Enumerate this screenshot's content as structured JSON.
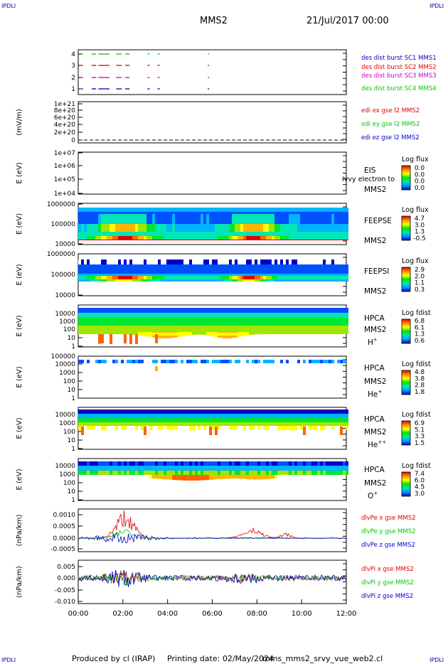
{
  "header": {
    "corner_left": "IPDLI",
    "corner_right": "IPDLI",
    "mission": "MMS2",
    "date": "21/Jul/2017 00:00"
  },
  "footer": {
    "produced_by": "Produced by cl (IRAP)",
    "printing_date": "Printing date: 02/May/2024",
    "script_name": "mms_mms2_srvy_vue_web2.cl",
    "corner_left": "IPDLI",
    "corner_right": "IPDLI"
  },
  "colors": {
    "red": "#e00000",
    "green": "#00c800",
    "blue": "#0000c8",
    "magenta": "#c800c8",
    "black": "#000000"
  },
  "chart_data": {
    "type": "stacked time-series panels",
    "x_ticks": [
      "00:00",
      "02:00",
      "04:00",
      "06:00",
      "08:00",
      "10:00",
      "12:00"
    ],
    "x_range_hours": [
      0,
      12
    ],
    "panels": [
      {
        "type": "line",
        "ylabel": "",
        "yticks": [
          "1",
          "2",
          "3",
          "4"
        ],
        "series": [
          {
            "name": "des dist burst SC1 MMS1",
            "color": "#0000c8",
            "level": 1
          },
          {
            "name": "des dist burst SC2 MMS2",
            "color": "#e00000",
            "level": 3
          },
          {
            "name": "des dist burst SC3 MMS3",
            "color": "#c800c8",
            "level": 2
          },
          {
            "name": "des dist burst SC4 MMS4",
            "color": "#00c800",
            "level": 4
          }
        ],
        "burst_intervals_hours": [
          [
            0.15,
            0.2
          ],
          [
            0.6,
            0.8
          ],
          [
            0.9,
            1.4
          ],
          [
            1.7,
            1.95
          ],
          [
            2.1,
            2.3
          ],
          [
            3.1,
            3.2
          ],
          [
            3.55,
            3.65
          ],
          [
            5.8,
            5.85
          ]
        ]
      },
      {
        "type": "line",
        "ylabel": "(mV/m)",
        "yticks": [
          "0",
          "2e+20",
          "4e+20",
          "6e+20",
          "8e+20",
          "1e+21"
        ],
        "series": [
          {
            "name": "edi ex gse l2 MMS2",
            "color": "#e00000"
          },
          {
            "name": "edi ey gse l2 MMS2",
            "color": "#00c800"
          },
          {
            "name": "edi ez gse l2 MMS2",
            "color": "#0000c8"
          }
        ],
        "values": "0 throughout (dashed baseline)"
      },
      {
        "type": "heatmap",
        "ylabel": "E (eV)",
        "yticks": [
          "1e+04",
          "1e+05",
          "1e+06",
          "1e+07"
        ],
        "side_labels": [
          "EIS",
          "MMS2"
        ],
        "overlay": "Ivvy electron to",
        "colorbar": {
          "title": "Log flux",
          "ticks": [
            "0.0",
            "0.0",
            "0.0",
            "0.0"
          ]
        },
        "values": "no data"
      },
      {
        "type": "heatmap",
        "ylabel": "E (eV)",
        "yticks": [
          "10000",
          "100000",
          "1000000"
        ],
        "side_labels": [
          "FEEPSE",
          "MMS2"
        ],
        "colorbar": {
          "title": "Log flux",
          "ticks": [
            "4.7",
            "3.0",
            "1.3",
            "-0.5"
          ]
        }
      },
      {
        "type": "heatmap",
        "ylabel": "E (eV)",
        "yticks": [
          "10000",
          "100000",
          "1000000"
        ],
        "side_labels": [
          "FEEPSI",
          "MMS2"
        ],
        "colorbar": {
          "title": "Log flux",
          "ticks": [
            "2.9",
            "2.0",
            "1.1",
            "0.3"
          ]
        }
      },
      {
        "type": "heatmap",
        "ylabel": "E (eV)",
        "yticks": [
          "1",
          "10",
          "100",
          "1000",
          "10000"
        ],
        "side_labels": [
          "HPCA",
          "MMS2"
        ],
        "species": {
          "base": "H",
          "sup": "+"
        },
        "colorbar": {
          "title": "Log fdist",
          "ticks": [
            "6.8",
            "6.1",
            "1.3",
            "0.6"
          ]
        }
      },
      {
        "type": "heatmap",
        "ylabel": "E (eV)",
        "yticks": [
          "1",
          "10",
          "100",
          "1000",
          "10000",
          "100000"
        ],
        "side_labels": [
          "HPCA",
          "MMS2"
        ],
        "species": {
          "base": "He",
          "sup": "+"
        },
        "colorbar": {
          "title": "Log fdist",
          "ticks": [
            "4.8",
            "3.8",
            "2.8",
            "1.8"
          ]
        }
      },
      {
        "type": "heatmap",
        "ylabel": "E (eV)",
        "yticks": [
          "1",
          "10",
          "100",
          "1000",
          "10000"
        ],
        "side_labels": [
          "HPCA",
          "MMS2"
        ],
        "species": {
          "base": "He",
          "sup": "++"
        },
        "colorbar": {
          "title": "Log fdist",
          "ticks": [
            "6.9",
            "5.1",
            "3.3",
            "1.5"
          ]
        }
      },
      {
        "type": "heatmap",
        "ylabel": "E (eV)",
        "yticks": [
          "1",
          "10",
          "100",
          "1000",
          "10000"
        ],
        "side_labels": [
          "HPCA",
          "MMS2"
        ],
        "species": {
          "base": "O",
          "sup": "+"
        },
        "colorbar": {
          "title": "Log fdist",
          "ticks": [
            "7.4",
            "6.0",
            "4.5",
            "3.0"
          ]
        }
      },
      {
        "type": "line",
        "ylabel": "(nPa/km)",
        "yticks": [
          "-0.0005",
          "0.0000",
          "0.0005",
          "0.0010"
        ],
        "series": [
          {
            "name": "dlvPe x gse MMS2",
            "color": "#e00000"
          },
          {
            "name": "dlvPe y gse MMS2",
            "color": "#00c800"
          },
          {
            "name": "dlvPe z gse MMS2",
            "color": "#0000c8"
          }
        ]
      },
      {
        "type": "line",
        "ylabel": "(nPa/km)",
        "yticks": [
          "-0.010",
          "-0.005",
          "0.000",
          "0.005"
        ],
        "series": [
          {
            "name": "dlvPi x gse MMS2",
            "color": "#e00000"
          },
          {
            "name": "dlvPi y gse MMS2",
            "color": "#00c800"
          },
          {
            "name": "dlvPi z gse MMS2",
            "color": "#0000c8"
          }
        ]
      }
    ]
  }
}
